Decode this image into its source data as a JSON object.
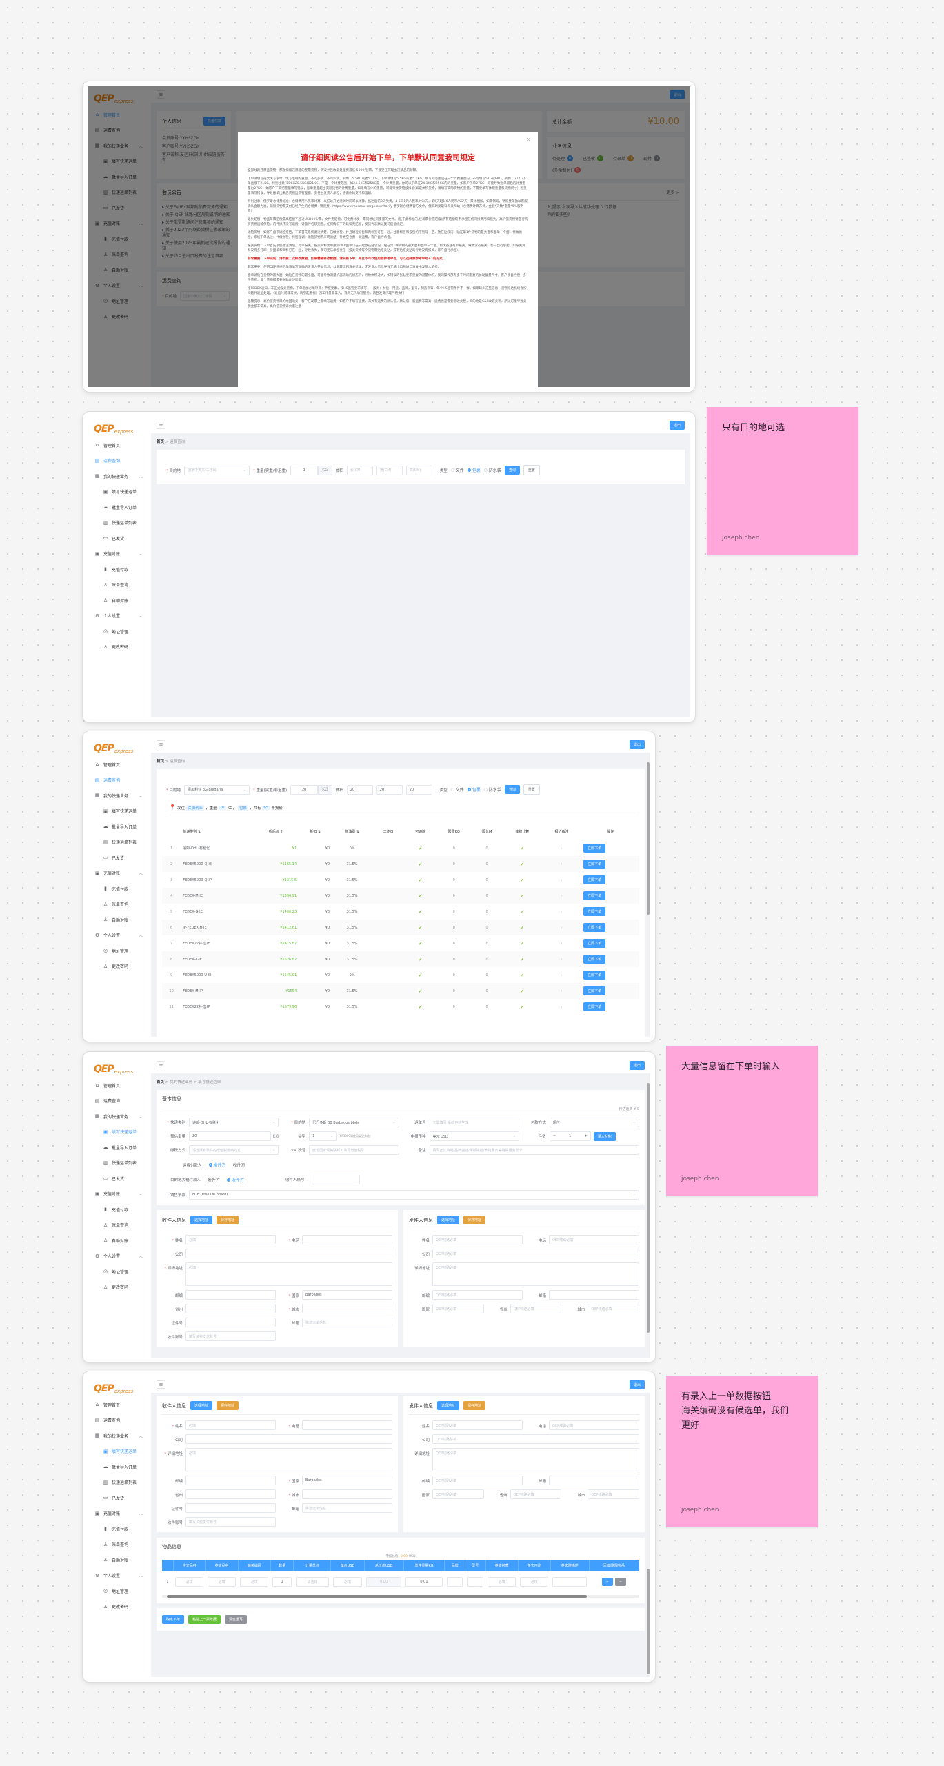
{
  "app": {
    "logo": {
      "brand": "QEP",
      "sub": "express"
    },
    "logout_label": "退出",
    "sidebar": [
      {
        "label": "管理首页",
        "icon": "home-icon"
      },
      {
        "label": "运费查询",
        "icon": "calculator-icon"
      },
      {
        "label": "我的快递业务",
        "icon": "grid-icon",
        "children": [
          {
            "label": "填写快递运单",
            "icon": "form-icon"
          },
          {
            "label": "批量导入订单",
            "icon": "cloud-upload-icon"
          },
          {
            "label": "快递运单列表",
            "icon": "list-icon"
          },
          {
            "label": "已发货",
            "icon": "truck-icon"
          }
        ]
      },
      {
        "label": "充值对账",
        "icon": "wallet-icon",
        "children": [
          {
            "label": "充值付款",
            "icon": "bar-chart-icon"
          },
          {
            "label": "账单查询",
            "icon": "user-icon"
          },
          {
            "label": "自助对账",
            "icon": "user-icon"
          }
        ]
      },
      {
        "label": "个人设置",
        "icon": "gear-icon",
        "children": [
          {
            "label": "地址管理",
            "icon": "location-icon"
          },
          {
            "label": "更改密码",
            "icon": "user-icon"
          }
        ]
      }
    ]
  },
  "dashboard": {
    "profile": {
      "title": "个人信息",
      "button": "充值付款",
      "fields": [
        {
          "label": "会员账号:",
          "value": "YYHSZGY"
        },
        {
          "label": "客户账号:",
          "value": "YYHSZGY"
        },
        {
          "label": "客户名称:",
          "value": "友运升(深圳)供应链服务有"
        }
      ]
    },
    "balance": {
      "label": "总计余额",
      "value": "¥10.00"
    },
    "business": {
      "title": "业务信息",
      "badges": [
        {
          "label": "待处理",
          "count": "0",
          "color": "#409eff"
        },
        {
          "label": "已签收",
          "count": "0",
          "color": "#67c23a"
        },
        {
          "label": "待录单",
          "count": "0",
          "color": "#e6a23c"
        },
        {
          "label": "现付",
          "count": "0",
          "color": "#909399"
        },
        {
          "label": "(多余制付)",
          "count": "0",
          "color": "#f56c6c"
        }
      ]
    },
    "notices": {
      "title": "会员公告",
      "more": "更多 >",
      "items": [
        "关于FedEx异邦附加费减免的通知",
        "关于 QEP 线路分区规则说明的通知",
        "关于俄罗斯路向注意事项的通知",
        "关于2023年阿联酋关税征收政策的通知",
        "关于使用2023年最新退货报告的通知",
        "关于约旦进出口税费的注意事项"
      ],
      "right_items": [
        "入,提示:本次导入共成功处理 0 行数据",
        "询的要多些?"
      ]
    },
    "rate_query": {
      "title": "运费查询",
      "dest_label": "目的地",
      "dest_placeholder": "国家中英文/二字码"
    },
    "modal": {
      "title": "请仔细阅读公告后开始下单，下单默认同意我司规定",
      "close": "×",
      "paragraphs": [
        {
          "text": "全部线路违禁品货物，都会扣留违禁品的整票货物，销毁并且收取处理费最低 5000元/票，不接受任何理由违禁品的解释。"
        },
        {
          "text": "下单请填写英文大写字母，填写准确的重量，不可多填，不可少填。例如：5.5KG或者5.1KG，下单请填写5.5KG或者5.1KG，填写的范围是在一个计费重量内，不可填写5KG或6KG。例如：21KG下单直接下21KG，特别注意FEDEX20.5KG和21KG，不是一个计费范围，如24.5KG和25KG是一个计费重量，你可以下单在24.1KG和25KG内的重量。如客户下单27KG，可能导致账单最后的计费重量为27KG，如客户下单把重量填写错误，账单重量超出实际货物的计费重量，如果填写少的重量，可能导致货物被扣留(如是体积货物，请填写实际货物的重量，不需要填写体积重量和货物尺寸）因重量填写错误，导致账单出来后货物运费有差额，责任由发货人承担，感谢你的支持和理解。"
        },
        {
          "text": "特别注意：俄罗斯仓储费标准：仓储费用人民币计算，以抵达开始清关时间可以计算，抵达后前3天免费，4-5天1元人民币/KG/天，第5天起1.6人民币/KG/天，累计相加。如需销毁，销毁费单独以客服确认金额为准，销毁货物需支付已经产生的仓储费+销毁费。https://www.moscow-cargo.com/tarify 俄罗斯仓储费官方文件，俄罗斯莫斯科海关网站（仓储费计算方式，金额*天数*重量*5%服务费）"
        },
        {
          "text": "退失赔偿：物品每票赔偿最高赔偿不超过USD100/票，文件无赔偿，可免费补发一票同地址同重量的文件。(低于此标准的,按发票价值赔偿)所有赔偿均不承担任何间接费用和损失。高价值货物请自行购买货物运输保险。内件损坏没有赔偿，请自行包装完整。任何情况下的延误无赔偿，发货代表默认我司赔偿规定。"
        },
        {
          "text": "磁检货物，如客户自带磁检报告，下单首先系统备注清楚，已做磁检，并且磁检报告和青标签订在一起，注意标签和报告的序列号一至，放在贴袋内，贴在第1件货物的最大面和面单一个面。代做磁检，系统下单备注：代做磁检，特别强调，磁检货物不声明清楚，导致空仓费，既运费，客户自行承担。"
        },
        {
          "text": "报关货物，下单首先系统备注清楚，有单报关，报关资料需单独和QEP面单订在一起放在贴袋内，贴在第1件货物的最大面和面单一个面，如无备注有单报关，导致没有报关，客户自行承担，如报关资料没有多打印一份面单和资料订在一起，导致丢失，我司无法承担责任（报关货物每个货物需贴报关贴，没有贴报关贴的导致没有报关，客户自行承担）。"
        },
        {
          "text": "非常重要：下单完成，请不要二次修改数据，如果需要修改数据，请从新下单，并且不可以使用原参考单号，可以选择原参考单号+1的方式。",
          "emphasis": true
        },
        {
          "text": "非常重要：使用QEP网络下单请填写准确的发货人英文信息，以免转运和清关延误，无发货人信息导致无法出口和进口清关由发货人承担。"
        },
        {
          "text": "面单请贴在货物的最大面，如贴在货物的最小面，可能导致测量机器流动的状态下，导致体积过大，如错误的张贴要求重复的测量体积，我司操作部无多于时间重复的协助复量尺寸，客户承自行担，多件货物，每个货物都需要张贴QEP面单。"
        },
        {
          "text": "接FEDEX通知，非正式报关货物，下单增加必填项目：申报要素，按HS监管要求填写，一般为：材质，用途，品牌，型号，制造商等，每个HS监管条件不一样，如果缺少这些信息，货物抵达机场会按问题件退运处理，（退运时间非常长，请引起重视）因工作量非常大，我司无代填写服务，请各发货代理严格执行"
        },
        {
          "text": "温馨提示：高价值货物目的地国清关，客户在发票上需填写运费，如客户不填写运费，海关有运费的默认值，默认值一般运费非常高，运费也是需要增收关税，目的地是C&F收取关税，所以可能导致关税金额非常高，高价值货物请大家注意"
        }
      ]
    }
  },
  "rate": {
    "breadcrumb": [
      "首页",
      "运费查询"
    ],
    "labels": {
      "dest": "目的地",
      "weight": "重量(实重/非泡重)",
      "unit": "KG",
      "volume": "体积",
      "type": "类型",
      "query": "查询",
      "reset": "重置"
    },
    "placeholders": {
      "dest": "国家中英文/二字码",
      "length": "长(CM)",
      "width": "宽(CM)",
      "height": "高(CM)"
    },
    "types": [
      "文件",
      "包裹",
      "防水袋"
    ],
    "selected_type": "包裹",
    "empty": {
      "weight": "1"
    },
    "filled": {
      "dest": "保加利亚 BG Bulgaria",
      "weight": "20",
      "length": "20",
      "width": "20",
      "height": "20"
    },
    "summary": {
      "prefix": "发往",
      "country": "保加利亚",
      "weight_label": "，重量",
      "weight": "20",
      "unit": "KG，",
      "type": "包裹",
      "count_prefix": "，共有",
      "count": "65",
      "count_suffix": "条报价"
    },
    "table": {
      "columns": [
        "",
        "快递类别 ⇅",
        "折后价 ↑",
        "折扣 ⇅",
        "燃油费 ⇅",
        "工作日",
        "可追踪",
        "限重KG",
        "限长M",
        "体积计算",
        "报价备注",
        "操作"
      ],
      "action_label": "立即下单",
      "rows": [
        {
          "no": "1",
          "service": "递邮-DHL-有税化",
          "price": "¥1",
          "discount": "¥0",
          "fuel": "0%",
          "days": "",
          "trackable": true,
          "max_weight": "0",
          "max_length": "0",
          "volumetric": true
        },
        {
          "no": "2",
          "service": "FEDEX5000-Q-IE",
          "price": "¥1165.14",
          "discount": "¥0",
          "fuel": "31.5%",
          "days": "",
          "trackable": true,
          "max_weight": "0",
          "max_length": "0",
          "volumetric": true
        },
        {
          "no": "3",
          "service": "FEDEX5000-Q-IP",
          "price": "¥1315.5",
          "discount": "¥0",
          "fuel": "31.5%",
          "days": "",
          "trackable": true,
          "max_weight": "0",
          "max_length": "0",
          "volumetric": true
        },
        {
          "no": "4",
          "service": "FEDEX-M-IE",
          "price": "¥1396.91",
          "discount": "¥0",
          "fuel": "31.5%",
          "days": "",
          "trackable": true,
          "max_weight": "0",
          "max_length": "0",
          "volumetric": true
        },
        {
          "no": "5",
          "service": "FEDEX-G-IE",
          "price": "¥1400.23",
          "discount": "¥0",
          "fuel": "31.5%",
          "days": "",
          "trackable": true,
          "max_weight": "0",
          "max_length": "0",
          "volumetric": true
        },
        {
          "no": "6",
          "service": "JP-FEDEX-H-IE",
          "price": "¥1412.61",
          "discount": "¥0",
          "fuel": "31.5%",
          "days": "",
          "trackable": true,
          "max_weight": "0",
          "max_length": "0",
          "volumetric": true
        },
        {
          "no": "7",
          "service": "FEDEX22补-售IE",
          "price": "¥1415.87",
          "discount": "¥0",
          "fuel": "31.5%",
          "days": "",
          "trackable": true,
          "max_weight": "0",
          "max_length": "0",
          "volumetric": true
        },
        {
          "no": "8",
          "service": "FEDEX-A-IE",
          "price": "¥1526.87",
          "discount": "¥0",
          "fuel": "31.5%",
          "days": "",
          "trackable": true,
          "max_weight": "0",
          "max_length": "0",
          "volumetric": true
        },
        {
          "no": "9",
          "service": "FEDEX5000-U-IE",
          "price": "¥1545.01",
          "discount": "¥0",
          "fuel": "0%",
          "days": "",
          "trackable": true,
          "max_weight": "0",
          "max_length": "0",
          "volumetric": true
        },
        {
          "no": "10",
          "service": "FEDEX-M-IP",
          "price": "¥1554",
          "discount": "¥0",
          "fuel": "31.5%",
          "days": "",
          "trackable": true,
          "max_weight": "0",
          "max_length": "0",
          "volumetric": true
        },
        {
          "no": "11",
          "service": "FEDEX22补-售IP",
          "price": "¥1579.96",
          "discount": "¥0",
          "fuel": "31.5%",
          "days": "",
          "trackable": true,
          "max_weight": "0",
          "max_length": "0",
          "volumetric": true
        }
      ]
    }
  },
  "order": {
    "breadcrumb": [
      "首页",
      "我的快递业务",
      "填写快递运单"
    ],
    "basic": {
      "title": "基本信息",
      "estimate": "预估运费 ¥ 0",
      "fields": [
        {
          "label": "快递类别",
          "required": true,
          "value": "递邮-DHL-有税化",
          "select": true
        },
        {
          "label": "目的地",
          "required": true,
          "value": "巴巴多斯 BB Barbados bbds",
          "select": true
        },
        {
          "label": "运单号",
          "placeholder": "无需填写 系统自动生成"
        },
        {
          "label": "付款方式",
          "value": "现付",
          "select": true
        },
        {
          "label": "预估重量",
          "value": "20",
          "suffix": "KG"
        },
        {
          "label": "类型",
          "value": "1",
          "hint": "(KP1000请使用类型多选)",
          "select": true
        },
        {
          "label": "申报币种",
          "value": "美元 USD",
          "select": true
        },
        {
          "label": "件数",
          "value": "1",
          "stepper": true,
          "button": "录入材积"
        },
        {
          "label": "缴税方式",
          "placeholder": "请选择身条件的增值税缴纳方式",
          "select": true
        },
        {
          "label": "VAT税号",
          "placeholder": "欧盟国家或英联邦可填写增值税号"
        },
        {
          "label": "备注",
          "placeholder": "请写正式填制/品牌描述/带磁磁检/木箱熏蒸等特殊服务需求",
          "wide": true
        }
      ],
      "freight_payer": {
        "label": "运费付款人",
        "options": [
          "发件方",
          "收件方"
        ],
        "selected": "发件方"
      },
      "duty_payer": {
        "label": "目的地关税付款人",
        "options": [
          "发件方",
          "收件方"
        ],
        "selected": "收件方"
      },
      "receiver_account": {
        "label": "收件人账号",
        "value": ""
      },
      "terms": {
        "label": "销售条款",
        "value": "FOB  (Free On Board)"
      }
    },
    "recipient": {
      "title": "收件人信息",
      "select_btn": "选择地址",
      "save_btn": "保存地址",
      "fields": [
        {
          "label": "姓名",
          "required": true,
          "placeholder": "必填",
          "span": 3
        },
        {
          "label": "电话",
          "required": true,
          "span": 3
        },
        {
          "label": "公司",
          "span": 6
        },
        {
          "label": "详细地址",
          "required": true,
          "placeholder": "必填",
          "span": 6,
          "textarea": true
        },
        {
          "label": "邮编",
          "span": 3
        },
        {
          "label": "国家",
          "required": true,
          "value": "Barbados",
          "span": 3
        },
        {
          "label": "省州",
          "span": 3
        },
        {
          "label": "城市",
          "required": true,
          "span": 3
        },
        {
          "label": "证件号",
          "span": 3
        },
        {
          "label": "邮箱",
          "placeholder": "推送运单信息",
          "span": 3
        },
        {
          "label": "收件账号",
          "placeholder": "填写关税支付账号",
          "span": 3
        }
      ]
    },
    "sender": {
      "title": "发件人信息",
      "select_btn": "选择地址",
      "save_btn": "保存地址",
      "fields": [
        {
          "label": "姓名",
          "placeholder": "QEP线路必填",
          "span": 3
        },
        {
          "label": "电话",
          "placeholder": "QEP线路必填",
          "span": 3
        },
        {
          "label": "公司",
          "placeholder": "QEP线路必填",
          "span": 6
        },
        {
          "label": "详细地址",
          "placeholder": "QEP线路必填",
          "span": 6,
          "textarea": true
        },
        {
          "label": "邮编",
          "placeholder": "QEP线路必填",
          "span": 3
        },
        {
          "label": "邮箱",
          "span": 3
        },
        {
          "label": "国家",
          "placeholder": "QEP线路必填",
          "span": 2
        },
        {
          "label": "省州",
          "placeholder": "QEP线路必填",
          "span": 2
        },
        {
          "label": "城市",
          "placeholder": "QEP线路必填",
          "span": 2
        }
      ]
    },
    "items": {
      "title": "物品信息",
      "declared_label": "申报总值:",
      "declared_value": "0.00",
      "declared_currency": "USD",
      "columns": [
        "",
        "中文品名",
        "英文品名",
        "海关编码",
        "数量",
        "计量单位",
        "单价USD",
        "总价值USD",
        "单件重量KG",
        "品牌",
        "型号",
        "英文材质",
        "英文用途",
        "英文附描述",
        "添加/删除物品"
      ],
      "row": [
        "1",
        "必填",
        "必填",
        "必填",
        "1",
        "请选择",
        "必填",
        "0.00",
        "0.01",
        "",
        "",
        "必填",
        "必填",
        ""
      ],
      "add": "+",
      "remove": "−"
    },
    "actions": {
      "submit": "确定下单",
      "paste_last": "粘贴上一票数据",
      "clear": "清空重写"
    }
  },
  "board": {
    "sticky_notes": [
      {
        "text": "只有目的地可选",
        "author": "joseph.chen",
        "color": "#ffa6da"
      },
      {
        "text": "大量信息留在下单时输入",
        "author": "joseph.chen",
        "color": "#ffa6da"
      },
      {
        "text": "有录入上一单数据按钮\n海关编码没有候选单，我们\n更好",
        "author": "joseph.chen",
        "color": "#ffa6da"
      }
    ]
  },
  "colors": {
    "primary": "#409eff",
    "brand": "#e8841a",
    "success": "#67c23a",
    "warning": "#e6a23c",
    "danger": "#e02020"
  }
}
